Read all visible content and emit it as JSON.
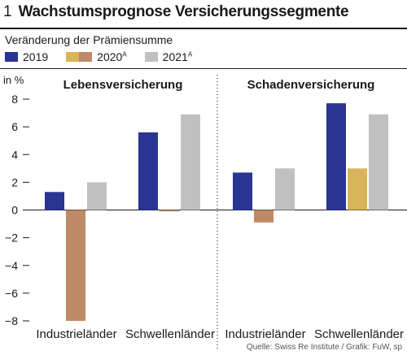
{
  "figure_number": "1",
  "title": "Wachstumsprognose Versicherungssegmente",
  "subtitle": "Veränderung der Prämiensumme",
  "legend": [
    {
      "label": "2019",
      "superscript": "",
      "colors": [
        "#283593"
      ]
    },
    {
      "label": "2020",
      "superscript": "A",
      "colors": [
        "#d9b55a",
        "#c08965"
      ]
    },
    {
      "label": "2021",
      "superscript": "A",
      "colors": [
        "#c0c0c0"
      ]
    }
  ],
  "source": "Quelle: Swiss Re Institute / Grafik: FuW, sp",
  "chart_data": {
    "type": "bar",
    "ylabel": "in %",
    "ylim": [
      -8,
      8
    ],
    "yticks": [
      8,
      6,
      4,
      2,
      0,
      -2,
      -4,
      -6,
      -8
    ],
    "grid": false,
    "legend_position": "top-left",
    "panels": [
      {
        "name": "Lebensversicherung",
        "categories": [
          "Industrieländer",
          "Schwellenländer"
        ],
        "series": [
          {
            "name": "2019",
            "color": "#283593",
            "values": [
              1.3,
              5.6
            ]
          },
          {
            "name": "2020A",
            "color": "#c08965",
            "values": [
              -8.0,
              -0.1
            ]
          },
          {
            "name": "2021A",
            "color": "#c0c0c0",
            "values": [
              2.0,
              6.9
            ]
          }
        ]
      },
      {
        "name": "Schadenversicherung",
        "categories": [
          "Industrieländer",
          "Schwellenländer"
        ],
        "series": [
          {
            "name": "2019",
            "color": "#283593",
            "values": [
              2.7,
              7.7
            ]
          },
          {
            "name": "2020A",
            "color": "#c08965",
            "color_override": [
              "#c08965",
              "#d9b55a"
            ],
            "values": [
              -0.9,
              3.0
            ]
          },
          {
            "name": "2021A",
            "color": "#c0c0c0",
            "values": [
              3.0,
              6.9
            ]
          }
        ]
      }
    ]
  }
}
